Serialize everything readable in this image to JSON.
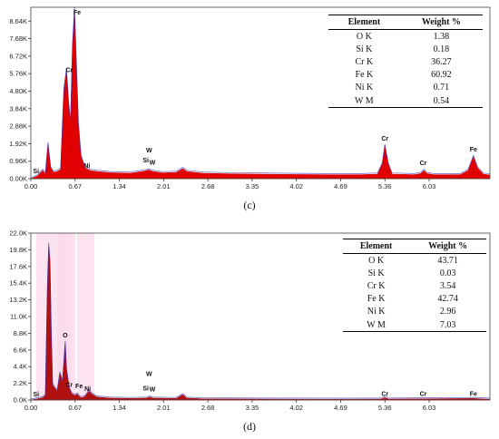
{
  "chart_data": [
    {
      "panel": "(c)",
      "type": "area",
      "xlabel": "",
      "ylabel": "",
      "x_ticks": [
        "0.00",
        "0.67",
        "1.34",
        "2.01",
        "2.68",
        "3.35",
        "4.02",
        "4.69",
        "5.36",
        "6.03"
      ],
      "y_ticks": [
        "0.00K",
        "0.96K",
        "1.92K",
        "2.88K",
        "3.84K",
        "4.80K",
        "5.76K",
        "6.72K",
        "7.68K",
        "8.64K"
      ],
      "xlim": [
        0,
        6.95
      ],
      "ylim": [
        0,
        9.4
      ],
      "series": [
        {
          "fill": "#e00000",
          "points": [
            [
              0.0,
              0.0
            ],
            [
              0.1,
              0.15
            ],
            [
              0.18,
              0.45
            ],
            [
              0.22,
              0.25
            ],
            [
              0.26,
              1.9
            ],
            [
              0.3,
              0.6
            ],
            [
              0.34,
              0.35
            ],
            [
              0.4,
              0.4
            ],
            [
              0.45,
              0.5
            ],
            [
              0.5,
              4.8
            ],
            [
              0.54,
              5.9
            ],
            [
              0.57,
              4.2
            ],
            [
              0.6,
              3.0
            ],
            [
              0.63,
              7.2
            ],
            [
              0.66,
              9.3
            ],
            [
              0.69,
              6.2
            ],
            [
              0.72,
              3.0
            ],
            [
              0.76,
              1.2
            ],
            [
              0.82,
              0.6
            ],
            [
              0.9,
              0.45
            ],
            [
              1.0,
              0.4
            ],
            [
              1.2,
              0.33
            ],
            [
              1.5,
              0.3
            ],
            [
              1.72,
              0.42
            ],
            [
              1.78,
              0.48
            ],
            [
              1.85,
              0.4
            ],
            [
              2.0,
              0.32
            ],
            [
              2.2,
              0.35
            ],
            [
              2.3,
              0.55
            ],
            [
              2.36,
              0.4
            ],
            [
              2.6,
              0.3
            ],
            [
              3.0,
              0.27
            ],
            [
              3.5,
              0.25
            ],
            [
              4.0,
              0.23
            ],
            [
              4.5,
              0.22
            ],
            [
              5.0,
              0.22
            ],
            [
              5.25,
              0.25
            ],
            [
              5.32,
              0.8
            ],
            [
              5.36,
              1.8
            ],
            [
              5.41,
              0.8
            ],
            [
              5.47,
              0.25
            ],
            [
              5.8,
              0.22
            ],
            [
              5.9,
              0.28
            ],
            [
              5.95,
              0.45
            ],
            [
              6.0,
              0.28
            ],
            [
              6.1,
              0.22
            ],
            [
              6.5,
              0.22
            ],
            [
              6.62,
              0.45
            ],
            [
              6.7,
              1.2
            ],
            [
              6.76,
              0.6
            ],
            [
              6.85,
              0.25
            ],
            [
              6.95,
              0.2
            ]
          ]
        }
      ],
      "peak_labels": [
        {
          "text": "Fe",
          "x": 0.7,
          "y": 8.9
        },
        {
          "text": "Cr",
          "x": 0.58,
          "y": 5.75
        },
        {
          "text": "Si",
          "x": 0.08,
          "y": 0.2
        },
        {
          "text": "Ni",
          "x": 0.85,
          "y": 0.5
        },
        {
          "text": "W",
          "x": 1.79,
          "y": 1.35
        },
        {
          "text": "Si",
          "x": 1.74,
          "y": 0.8
        },
        {
          "text": "W",
          "x": 1.84,
          "y": 0.68
        },
        {
          "text": "Cr",
          "x": 5.36,
          "y": 2.0
        },
        {
          "text": "Cr",
          "x": 5.94,
          "y": 0.65
        },
        {
          "text": "Fe",
          "x": 6.7,
          "y": 1.4
        }
      ]
    },
    {
      "panel": "(d)",
      "type": "area",
      "xlabel": "",
      "ylabel": "",
      "x_ticks": [
        "0.00",
        "0.67",
        "1.34",
        "2.01",
        "2.68",
        "3.35",
        "4.02",
        "4.69",
        "5.36",
        "6.03"
      ],
      "y_ticks": [
        "0.0K",
        "2.2K",
        "4.4K",
        "6.6K",
        "8.8K",
        "11.0K",
        "13.2K",
        "15.4K",
        "17.6K",
        "19.8K",
        "22.0K"
      ],
      "xlim": [
        0,
        6.95
      ],
      "ylim": [
        0,
        22.0
      ],
      "series": [
        {
          "fill": "#b01010",
          "points": [
            [
              0.0,
              0.0
            ],
            [
              0.1,
              0.15
            ],
            [
              0.18,
              0.3
            ],
            [
              0.22,
              0.6
            ],
            [
              0.25,
              14.5
            ],
            [
              0.27,
              20.2
            ],
            [
              0.29,
              18.0
            ],
            [
              0.31,
              8.5
            ],
            [
              0.33,
              2.0
            ],
            [
              0.36,
              1.6
            ],
            [
              0.4,
              1.2
            ],
            [
              0.44,
              3.5
            ],
            [
              0.48,
              2.4
            ],
            [
              0.52,
              7.5
            ],
            [
              0.54,
              4.0
            ],
            [
              0.58,
              1.6
            ],
            [
              0.62,
              0.8
            ],
            [
              0.67,
              0.6
            ],
            [
              0.7,
              0.8
            ],
            [
              0.74,
              0.4
            ],
            [
              0.78,
              0.3
            ],
            [
              0.83,
              0.55
            ],
            [
              0.88,
              1.2
            ],
            [
              0.92,
              0.8
            ],
            [
              1.0,
              0.4
            ],
            [
              1.2,
              0.25
            ],
            [
              1.5,
              0.2
            ],
            [
              1.75,
              0.25
            ],
            [
              1.8,
              0.4
            ],
            [
              1.85,
              0.25
            ],
            [
              2.2,
              0.2
            ],
            [
              2.3,
              0.7
            ],
            [
              2.36,
              0.25
            ],
            [
              2.6,
              0.15
            ],
            [
              3.5,
              0.12
            ],
            [
              4.5,
              0.1
            ],
            [
              5.3,
              0.12
            ],
            [
              5.36,
              0.3
            ],
            [
              5.42,
              0.12
            ],
            [
              5.95,
              0.15
            ],
            [
              6.7,
              0.2
            ],
            [
              6.95,
              0.1
            ]
          ]
        }
      ],
      "peak_labels": [
        {
          "text": "O",
          "x": 0.52,
          "y": 8.0
        },
        {
          "text": "Cr",
          "x": 0.58,
          "y": 1.5
        },
        {
          "text": "Fe",
          "x": 0.73,
          "y": 1.3
        },
        {
          "text": "Ni",
          "x": 0.86,
          "y": 0.95
        },
        {
          "text": "Si",
          "x": 0.08,
          "y": 0.25
        },
        {
          "text": "W",
          "x": 1.79,
          "y": 2.9
        },
        {
          "text": "Si",
          "x": 1.74,
          "y": 1.0
        },
        {
          "text": "W",
          "x": 1.84,
          "y": 0.9
        },
        {
          "text": "Cr",
          "x": 5.36,
          "y": 0.3
        },
        {
          "text": "Cr",
          "x": 5.94,
          "y": 0.3
        },
        {
          "text": "Fe",
          "x": 6.7,
          "y": 0.3
        }
      ]
    }
  ],
  "panel_c": {
    "caption": "(c)",
    "table": {
      "headers": [
        "Element",
        "Weight %"
      ],
      "rows": [
        [
          "O K",
          "1.38"
        ],
        [
          "Si K",
          "0.18"
        ],
        [
          "Cr K",
          "36.27"
        ],
        [
          "Fe K",
          "60.92"
        ],
        [
          "Ni K",
          "0.71"
        ],
        [
          "W M",
          "0.54"
        ]
      ]
    }
  },
  "panel_d": {
    "caption": "(d)",
    "table": {
      "headers": [
        "Element",
        "Weight %"
      ],
      "rows": [
        [
          "O K",
          "43.71"
        ],
        [
          "Si K",
          "0.03"
        ],
        [
          "Cr K",
          "3.54"
        ],
        [
          "Fe K",
          "42.74"
        ],
        [
          "Ni K",
          "2.96"
        ],
        [
          "W M",
          "7.03"
        ]
      ]
    }
  },
  "colors": {
    "spectrum_c_fill": "#e00000",
    "spectrum_d_fill": "#b01010",
    "background_curve": "#3030c0",
    "panel_d_tint": "#f9d9ea"
  }
}
